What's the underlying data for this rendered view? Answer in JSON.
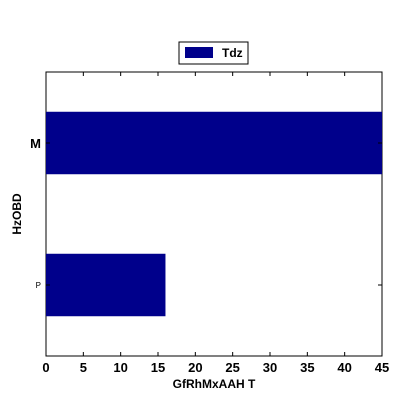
{
  "chart_data": {
    "type": "bar",
    "orientation": "horizontal",
    "categories": [
      "M",
      "P"
    ],
    "category_label_style": [
      {
        "name": "M",
        "size": "large"
      },
      {
        "name": "P",
        "size": "small"
      }
    ],
    "series": [
      {
        "name": "Tdz",
        "values": [
          45,
          16
        ],
        "color": "#00008b"
      }
    ],
    "xlabel": "GfRhMxAAH T",
    "ylabel": "HzOBD",
    "xlim": [
      0,
      45
    ],
    "xticks": [
      0,
      5,
      10,
      15,
      20,
      25,
      30,
      35,
      40,
      45
    ],
    "grid": false,
    "legend": {
      "position": "top-center",
      "entries": [
        "Tdz"
      ]
    }
  }
}
